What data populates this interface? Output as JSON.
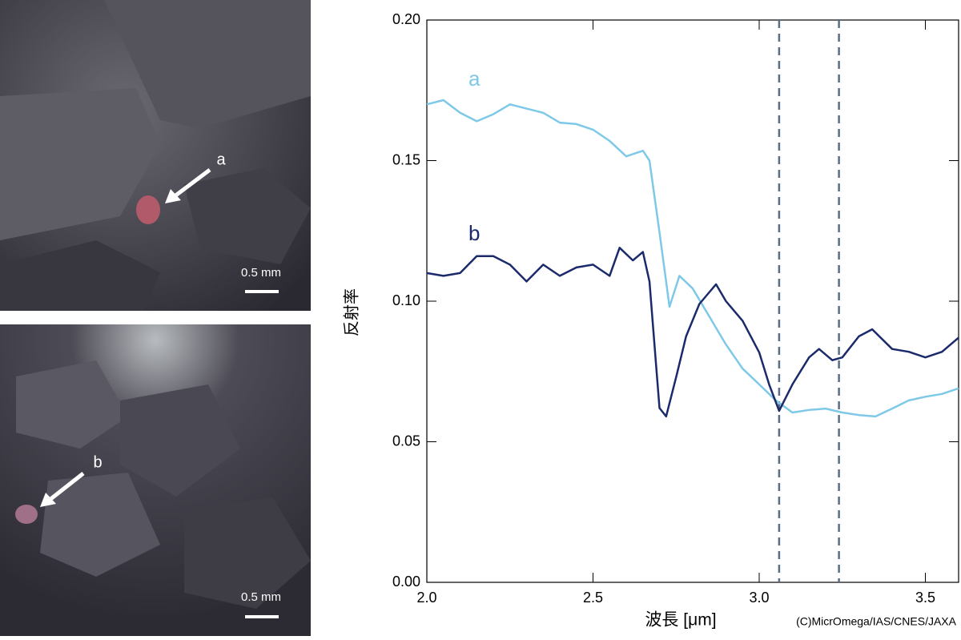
{
  "photos": [
    {
      "label": "a",
      "scale": "0.5 mm"
    },
    {
      "label": "b",
      "scale": "0.5 mm"
    }
  ],
  "credit": "(C)MicrOmega/IAS/CNES/JAXA",
  "chart_data": {
    "type": "line",
    "x_label": "波長 [μm]",
    "y_label": "反射率",
    "xlim": [
      2.0,
      3.6
    ],
    "ylim": [
      0,
      0.2
    ],
    "xticks": [
      {
        "value": 2.0,
        "label": "2.0"
      },
      2.5,
      {
        "value": 3.0,
        "label": "3.0"
      },
      3.5
    ],
    "yticks": [
      {
        "value": 0,
        "label": "0.00"
      },
      0.05,
      {
        "value": 0.1,
        "label": "0.10"
      },
      0.15,
      {
        "value": 0.2,
        "label": "0.20"
      }
    ],
    "reference_lines": [
      3.06,
      3.24
    ],
    "series": [
      {
        "name": "a",
        "color": "#7ec8e8",
        "x": [
          2.0,
          2.05,
          2.1,
          2.15,
          2.2,
          2.25,
          2.3,
          2.35,
          2.4,
          2.45,
          2.5,
          2.55,
          2.6,
          2.65,
          2.67,
          2.7,
          2.73,
          2.76,
          2.8,
          2.85,
          2.9,
          2.95,
          3.0,
          3.05,
          3.1,
          3.15,
          3.2,
          3.25,
          3.3,
          3.35,
          3.4,
          3.45,
          3.5,
          3.55,
          3.6
        ],
        "values": [
          0.17,
          0.1715,
          0.167,
          0.164,
          0.1665,
          0.17,
          0.1685,
          0.167,
          0.1635,
          0.163,
          0.161,
          0.157,
          0.1515,
          0.1535,
          0.15,
          0.1245,
          0.098,
          0.109,
          0.1045,
          0.0945,
          0.0846,
          0.076,
          0.0704,
          0.0647,
          0.0604,
          0.0613,
          0.0618,
          0.0604,
          0.0595,
          0.059,
          0.0618,
          0.0647,
          0.066,
          0.067,
          0.069
        ]
      },
      {
        "name": "b",
        "color": "#1b2a6b",
        "x": [
          2.0,
          2.05,
          2.1,
          2.15,
          2.2,
          2.25,
          2.3,
          2.35,
          2.4,
          2.45,
          2.5,
          2.55,
          2.58,
          2.62,
          2.65,
          2.67,
          2.7,
          2.72,
          2.75,
          2.78,
          2.82,
          2.87,
          2.9,
          2.95,
          3.0,
          3.03,
          3.06,
          3.1,
          3.15,
          3.18,
          3.22,
          3.25,
          3.3,
          3.34,
          3.4,
          3.45,
          3.5,
          3.55,
          3.6
        ],
        "values": [
          0.11,
          0.109,
          0.11,
          0.116,
          0.116,
          0.113,
          0.107,
          0.113,
          0.109,
          0.112,
          0.113,
          0.109,
          0.119,
          0.1145,
          0.1175,
          0.107,
          0.062,
          0.059,
          0.073,
          0.0875,
          0.099,
          0.106,
          0.1,
          0.093,
          0.0818,
          0.0704,
          0.061,
          0.0704,
          0.08,
          0.083,
          0.079,
          0.08,
          0.0875,
          0.09,
          0.083,
          0.082,
          0.08,
          0.082,
          0.087
        ]
      }
    ]
  }
}
